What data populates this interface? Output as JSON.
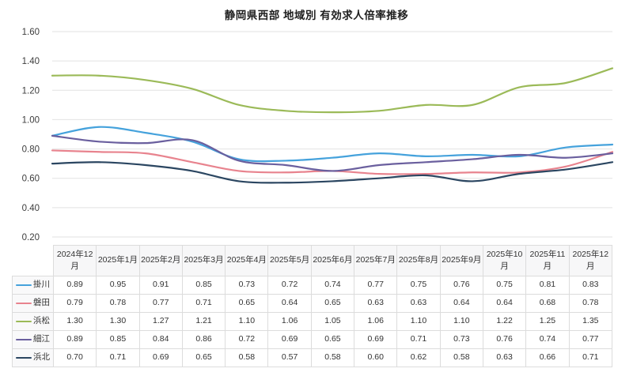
{
  "title": "静岡県西部 地域別 有効求人倍率推移",
  "chart_data": {
    "type": "line",
    "title": "静岡県西部 地域別 有効求人倍率推移",
    "categories": [
      "2024年12月",
      "2025年1月",
      "2025年2月",
      "2025年3月",
      "2025年4月",
      "2025年5月",
      "2025年6月",
      "2025年7月",
      "2025年8月",
      "2025年9月",
      "2025年10月",
      "2025年11月",
      "2025年12月"
    ],
    "series": [
      {
        "name": "掛川",
        "color": "#45a2dc",
        "values": [
          0.89,
          0.95,
          0.91,
          0.85,
          0.73,
          0.72,
          0.74,
          0.77,
          0.75,
          0.76,
          0.75,
          0.81,
          0.83
        ]
      },
      {
        "name": "磐田",
        "color": "#e8838e",
        "values": [
          0.79,
          0.78,
          0.77,
          0.71,
          0.65,
          0.64,
          0.65,
          0.63,
          0.63,
          0.64,
          0.64,
          0.68,
          0.78
        ]
      },
      {
        "name": "浜松",
        "color": "#9bba58",
        "values": [
          1.3,
          1.3,
          1.27,
          1.21,
          1.1,
          1.06,
          1.05,
          1.06,
          1.1,
          1.1,
          1.22,
          1.25,
          1.35
        ]
      },
      {
        "name": "細江",
        "color": "#6a5f9e",
        "values": [
          0.89,
          0.85,
          0.84,
          0.86,
          0.72,
          0.69,
          0.65,
          0.69,
          0.71,
          0.73,
          0.76,
          0.74,
          0.77
        ]
      },
      {
        "name": "浜北",
        "color": "#2b4661",
        "values": [
          0.7,
          0.71,
          0.69,
          0.65,
          0.58,
          0.57,
          0.58,
          0.6,
          0.62,
          0.58,
          0.63,
          0.66,
          0.71
        ]
      }
    ],
    "ylim": [
      0.2,
      1.6
    ],
    "ytick_step": 0.2,
    "ytick_labels": [
      "1.60",
      "1.40",
      "1.20",
      "1.00",
      "0.80",
      "0.60",
      "0.40",
      "0.20"
    ],
    "grid": "horizontal-only",
    "legend_position": "table-row-headers",
    "gridline_color": "#e2e2e2"
  },
  "table": {
    "corner_label": "",
    "column_headers": [
      "2024年12月",
      "2025年1月",
      "2025年2月",
      "2025年3月",
      "2025年4月",
      "2025年5月",
      "2025年6月",
      "2025年7月",
      "2025年8月",
      "2025年9月",
      "2025年10月",
      "2025年11月",
      "2025年12月"
    ],
    "rows": [
      {
        "label": "掛川",
        "values": [
          "0.89",
          "0.95",
          "0.91",
          "0.85",
          "0.73",
          "0.72",
          "0.74",
          "0.77",
          "0.75",
          "0.76",
          "0.75",
          "0.81",
          "0.83"
        ]
      },
      {
        "label": "磐田",
        "values": [
          "0.79",
          "0.78",
          "0.77",
          "0.71",
          "0.65",
          "0.64",
          "0.65",
          "0.63",
          "0.63",
          "0.64",
          "0.64",
          "0.68",
          "0.78"
        ]
      },
      {
        "label": "浜松",
        "values": [
          "1.30",
          "1.30",
          "1.27",
          "1.21",
          "1.10",
          "1.06",
          "1.05",
          "1.06",
          "1.10",
          "1.10",
          "1.22",
          "1.25",
          "1.35"
        ]
      },
      {
        "label": "細江",
        "values": [
          "0.89",
          "0.85",
          "0.84",
          "0.86",
          "0.72",
          "0.69",
          "0.65",
          "0.69",
          "0.71",
          "0.73",
          "0.76",
          "0.74",
          "0.77"
        ]
      },
      {
        "label": "浜北",
        "values": [
          "0.70",
          "0.71",
          "0.69",
          "0.65",
          "0.58",
          "0.57",
          "0.58",
          "0.60",
          "0.62",
          "0.58",
          "0.63",
          "0.66",
          "0.71"
        ]
      }
    ]
  }
}
